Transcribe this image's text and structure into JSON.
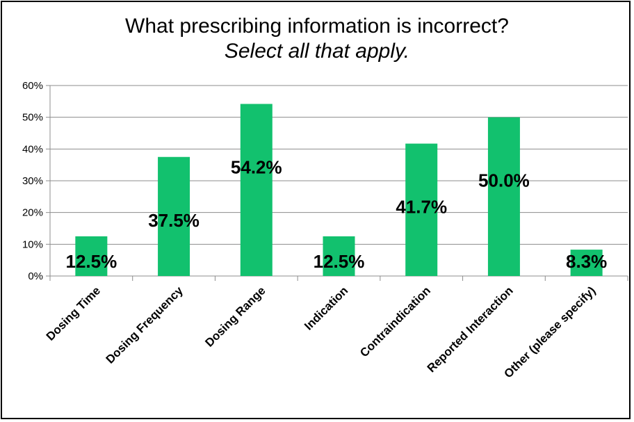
{
  "chart_data": {
    "type": "bar",
    "title": "What prescribing information is incorrect?",
    "subtitle": "Select all that apply.",
    "categories": [
      "Dosing Time",
      "Dosing Frequency",
      "Dosing Range",
      "Indication",
      "Contraindication",
      "Reported Interaction",
      "Other (please specify)"
    ],
    "values": [
      12.5,
      37.5,
      54.2,
      12.5,
      41.7,
      50.0,
      8.3
    ],
    "data_labels": [
      "12.5%",
      "37.5%",
      "54.2%",
      "12.5%",
      "41.7%",
      "50.0%",
      "8.3%"
    ],
    "ylim": [
      0,
      60
    ],
    "yticks": [
      "0%",
      "10%",
      "20%",
      "30%",
      "40%",
      "50%",
      "60%"
    ],
    "xlabel": "",
    "ylabel": "",
    "bar_color": "#12c16e",
    "grid": true,
    "legend": "none"
  }
}
